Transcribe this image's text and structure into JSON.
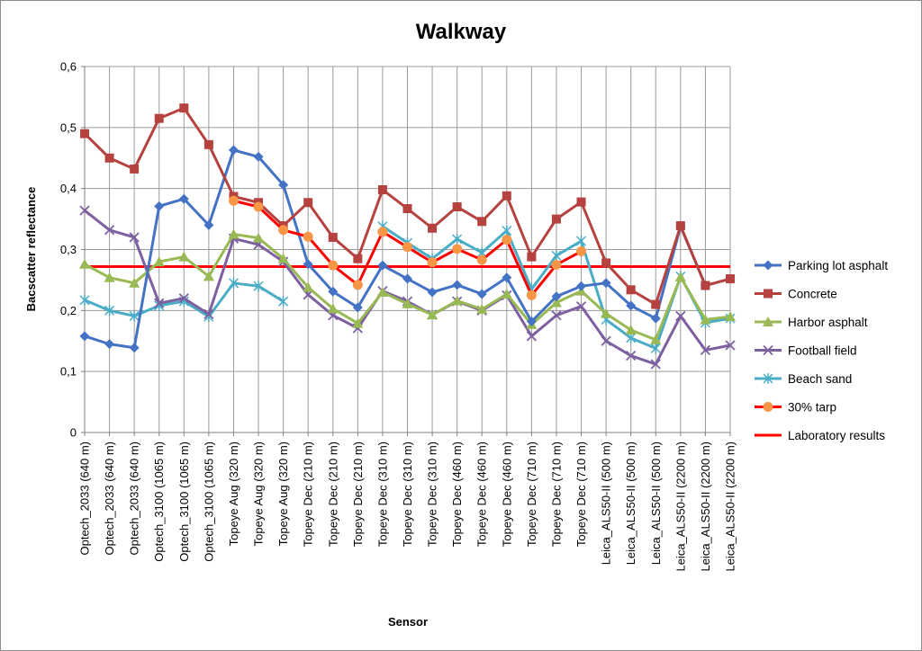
{
  "chart_data": {
    "type": "line",
    "title": "Walkway",
    "xlabel": "Sensor",
    "ylabel": "Bacscatter reflectance",
    "ylim": [
      0,
      0.6
    ],
    "yticks": [
      "0",
      "0,1",
      "0,2",
      "0,3",
      "0,4",
      "0,5",
      "0,6"
    ],
    "grid": true,
    "legend_position": "right",
    "categories": [
      "Optech_2033 (640 m)",
      "Optech_2033 (640 m)",
      "Optech_2033 (640 m)",
      "Optech_3100 (1065 m)",
      "Optech_3100 (1065 m)",
      "Optech_3100 (1065 m)",
      "Topeye Aug (320 m)",
      "Topeye Aug (320 m)",
      "Topeye Aug (320 m)",
      "Topeye Dec (210 m)",
      "Topeye Dec (210 m)",
      "Topeye Dec (210 m)",
      "Topeye Dec (310 m)",
      "Topeye Dec (310 m)",
      "Topeye Dec (310 m)",
      "Topeye Dec (460 m)",
      "Topeye Dec (460 m)",
      "Topeye Dec (460 m)",
      "Topeye Dec (710 m)",
      "Topeye Dec (710 m)",
      "Topeye Dec (710 m)",
      "Leica_ALS50-II (500 m)",
      "Leica_ALS50-II (500 m)",
      "Leica_ALS50-II (500 m)",
      "Leica_ALS50-II (2200 m)",
      "Leica_ALS50-II (2200 m)",
      "Leica_ALS50-II (2200 m)"
    ],
    "series": [
      {
        "name": "Parking lot asphalt",
        "color": "#4472C4",
        "marker": "diamond",
        "values": [
          0.158,
          0.145,
          0.139,
          0.371,
          0.383,
          0.34,
          0.463,
          0.452,
          0.406,
          0.276,
          0.231,
          0.205,
          0.274,
          0.252,
          0.23,
          0.242,
          0.227,
          0.254,
          0.182,
          0.223,
          0.24,
          0.245,
          0.208,
          0.187,
          0.338,
          0.241,
          0.252
        ]
      },
      {
        "name": "Concrete",
        "color": "#B5423F",
        "marker": "square",
        "values": [
          0.49,
          0.45,
          0.432,
          0.515,
          0.532,
          0.472,
          0.387,
          0.377,
          0.339,
          0.377,
          0.32,
          0.285,
          0.398,
          0.367,
          0.335,
          0.37,
          0.346,
          0.388,
          0.288,
          0.35,
          0.378,
          0.278,
          0.234,
          0.21,
          0.339,
          0.241,
          0.252
        ]
      },
      {
        "name": "Harbor asphalt",
        "color": "#98B954",
        "marker": "triangle",
        "values": [
          0.276,
          0.254,
          0.245,
          0.28,
          0.288,
          0.256,
          0.325,
          0.319,
          0.285,
          0.238,
          0.203,
          0.179,
          0.23,
          0.211,
          0.193,
          0.216,
          0.202,
          0.227,
          0.177,
          0.213,
          0.232,
          0.195,
          0.168,
          0.152,
          0.255,
          0.185,
          0.19
        ]
      },
      {
        "name": "Football field",
        "color": "#7D60A0",
        "marker": "x",
        "values": [
          0.364,
          0.332,
          0.32,
          0.212,
          0.22,
          0.194,
          0.318,
          0.308,
          0.28,
          0.226,
          0.192,
          0.171,
          0.232,
          0.215,
          0.193,
          0.215,
          0.2,
          0.225,
          0.158,
          0.192,
          0.207,
          0.15,
          0.126,
          0.112,
          0.191,
          0.135,
          0.143
        ]
      },
      {
        "name": "Beach sand",
        "color": "#4BACC6",
        "marker": "star",
        "values": [
          0.217,
          0.2,
          0.191,
          0.208,
          0.215,
          0.19,
          0.245,
          0.24,
          0.215,
          null,
          null,
          null,
          0.338,
          0.311,
          0.285,
          0.317,
          0.295,
          0.331,
          0.235,
          0.29,
          0.314,
          0.185,
          0.155,
          0.138,
          0.256,
          0.18,
          0.187
        ]
      },
      {
        "name": "30% tarp",
        "color": "#F79646",
        "line_color": "#FF0000",
        "marker": "circle",
        "values": [
          null,
          null,
          null,
          null,
          null,
          null,
          0.38,
          0.37,
          0.332,
          0.321,
          0.274,
          0.242,
          0.329,
          0.304,
          0.279,
          0.301,
          0.283,
          0.316,
          0.225,
          0.275,
          0.297,
          null,
          null,
          null,
          null,
          null,
          null
        ]
      },
      {
        "name": "Laboratory results",
        "color": "#FF0000",
        "marker": "none",
        "constant": 0.272
      }
    ]
  }
}
